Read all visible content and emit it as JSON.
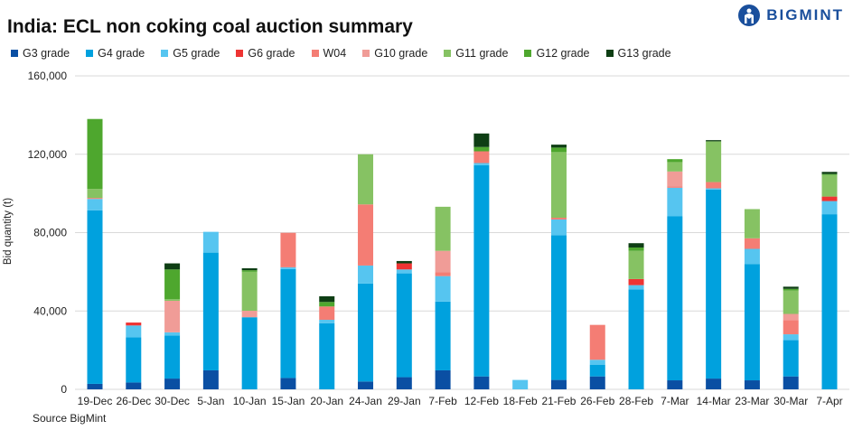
{
  "chart_data": {
    "type": "bar",
    "stacked": true,
    "title": "India: ECL non coking coal auction summary",
    "ylabel": "Bid quantity (t)",
    "xlabel": "",
    "ylim": [
      0,
      160000
    ],
    "yticks": [
      0,
      40000,
      80000,
      120000,
      160000
    ],
    "ytick_labels": [
      "0",
      "40,000",
      "80,000",
      "120,000",
      "160,000"
    ],
    "grid": true,
    "legend_position": "top",
    "categories": [
      "19-Dec",
      "26-Dec",
      "30-Dec",
      "5-Jan",
      "10-Jan",
      "15-Jan",
      "20-Jan",
      "24-Jan",
      "29-Jan",
      "7-Feb",
      "12-Feb",
      "18-Feb",
      "21-Feb",
      "26-Feb",
      "28-Feb",
      "7-Mar",
      "14-Mar",
      "23-Mar",
      "30-Mar",
      "7-Apr"
    ],
    "series": [
      {
        "name": "G3 grade",
        "color": "#0a4fa3",
        "values": [
          2800,
          3500,
          5500,
          9700,
          0,
          5800,
          0,
          4000,
          6200,
          9700,
          6600,
          0,
          4800,
          6600,
          0,
          4600,
          5500,
          4600,
          6600,
          0
        ]
      },
      {
        "name": "G4 grade",
        "color": "#00a1de",
        "values": [
          88600,
          23000,
          22000,
          60100,
          36800,
          55600,
          33700,
          50000,
          53000,
          35100,
          107800,
          0,
          73900,
          6000,
          51000,
          83700,
          96500,
          59400,
          18500,
          89400
        ]
      },
      {
        "name": "G5 grade",
        "color": "#56c5f0",
        "values": [
          5800,
          6100,
          1600,
          10600,
          0,
          900,
          1800,
          9200,
          2000,
          13000,
          1100,
          4800,
          8000,
          2500,
          2200,
          14600,
          600,
          7700,
          3000,
          6700
        ]
      },
      {
        "name": "G6 grade",
        "color": "#ee3433",
        "values": [
          0,
          1500,
          0,
          0,
          0,
          0,
          0,
          0,
          3100,
          0,
          0,
          0,
          0,
          0,
          3100,
          0,
          0,
          0,
          0,
          2300
        ]
      },
      {
        "name": "W04",
        "color": "#f47d74",
        "values": [
          500,
          0,
          0,
          0,
          0,
          17600,
          6800,
          31200,
          0,
          1900,
          6000,
          0,
          900,
          17800,
          0,
          600,
          3200,
          5400,
          7300,
          0
        ]
      },
      {
        "name": "G10 grade",
        "color": "#f09c97",
        "values": [
          0,
          0,
          16100,
          0,
          3300,
          0,
          0,
          0,
          0,
          11000,
          0,
          0,
          0,
          0,
          0,
          7700,
          0,
          0,
          3100,
          0
        ]
      },
      {
        "name": "G11 grade",
        "color": "#86c263",
        "values": [
          4600,
          0,
          800,
          0,
          19900,
          0,
          0,
          25600,
          0,
          22500,
          0,
          0,
          33500,
          0,
          14400,
          4800,
          20800,
          14900,
          11900,
          11000
        ]
      },
      {
        "name": "G12 grade",
        "color": "#4ea72e",
        "values": [
          35700,
          0,
          15200,
          0,
          800,
          0,
          2300,
          0,
          0,
          0,
          2200,
          0,
          2300,
          0,
          1700,
          1500,
          0,
          0,
          900,
          500
        ]
      },
      {
        "name": "G13 grade",
        "color": "#0e3e14",
        "values": [
          0,
          0,
          3100,
          0,
          1000,
          0,
          2900,
          0,
          1200,
          0,
          6900,
          0,
          1500,
          0,
          2200,
          0,
          600,
          0,
          1100,
          1100
        ]
      }
    ]
  },
  "brand": "BIGMINT",
  "source": "Source BigMint"
}
